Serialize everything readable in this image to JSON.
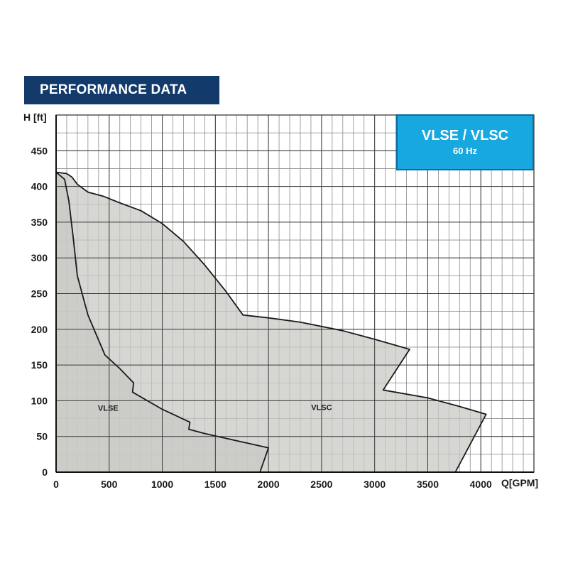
{
  "banner": {
    "title": "PERFORMANCE DATA"
  },
  "legend": {
    "title": "VLSE / VLSC",
    "subtitle": "60 Hz"
  },
  "colors": {
    "banner_bg": "#123a6b",
    "legend_bg": "#18a8e0",
    "area_fill": "#c8c8c4",
    "grid": "#444444"
  },
  "chart_data": {
    "type": "area",
    "xlabel": "Q[GPM]",
    "ylabel": "H [ft]",
    "xlim": [
      0,
      4500
    ],
    "ylim": [
      0,
      500
    ],
    "xticks": [
      0,
      500,
      1000,
      1500,
      2000,
      2500,
      3000,
      3500,
      4000
    ],
    "yticks": [
      0,
      50,
      100,
      150,
      200,
      250,
      300,
      350,
      400,
      450
    ],
    "minor_grid": {
      "x_step": 100,
      "y_step": 25
    },
    "grid": true,
    "series": [
      {
        "name": "VLSC",
        "label_at": [
          2500,
          87
        ],
        "points": [
          [
            0,
            420
          ],
          [
            100,
            418
          ],
          [
            150,
            413
          ],
          [
            200,
            403
          ],
          [
            300,
            392
          ],
          [
            450,
            386
          ],
          [
            600,
            377
          ],
          [
            800,
            366
          ],
          [
            1000,
            348
          ],
          [
            1200,
            323
          ],
          [
            1400,
            290
          ],
          [
            1600,
            253
          ],
          [
            1760,
            220
          ],
          [
            2000,
            216
          ],
          [
            2300,
            210
          ],
          [
            2700,
            198
          ],
          [
            3000,
            186
          ],
          [
            3330,
            172
          ],
          [
            3080,
            115
          ],
          [
            3500,
            104
          ],
          [
            3800,
            92
          ],
          [
            4050,
            81
          ],
          [
            3760,
            0
          ],
          [
            0,
            0
          ]
        ]
      },
      {
        "name": "VLSE",
        "label_at": [
          490,
          86
        ],
        "points": [
          [
            0,
            420
          ],
          [
            80,
            410
          ],
          [
            120,
            380
          ],
          [
            160,
            330
          ],
          [
            200,
            275
          ],
          [
            300,
            220
          ],
          [
            460,
            164
          ],
          [
            600,
            145
          ],
          [
            730,
            125
          ],
          [
            720,
            112
          ],
          [
            1000,
            88
          ],
          [
            1260,
            70
          ],
          [
            1250,
            60
          ],
          [
            1400,
            54
          ],
          [
            1700,
            44
          ],
          [
            2000,
            34
          ],
          [
            1920,
            0
          ],
          [
            0,
            0
          ]
        ]
      }
    ]
  }
}
